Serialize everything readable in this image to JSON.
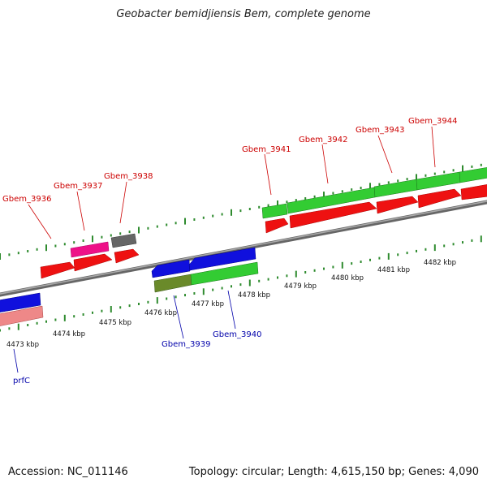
{
  "header": {
    "title": "Geobacter bemidjiensis Bem, complete genome"
  },
  "footer": {
    "accession": "Accession: NC_011146",
    "topology": "Topology: circular; Length: 4,615,150 bp; Genes: 4,090"
  },
  "colors": {
    "backbone": "#8a8a8a",
    "tick": "#2e8b2e",
    "red": "#ee1111",
    "blue": "#1010dd",
    "green": "#33cc33",
    "dark_green": "#2a8a2a",
    "magenta": "#ee1188",
    "gray": "#666666",
    "pink": "#ee8888",
    "olive": "#6a8a2a",
    "label_top": "#cc0000",
    "label_bottom": "#0000aa"
  },
  "kbp_ticks": [
    {
      "label": "4473 kbp"
    },
    {
      "label": "4474 kbp"
    },
    {
      "label": "4475 kbp"
    },
    {
      "label": "4476 kbp"
    },
    {
      "label": "4477 kbp"
    },
    {
      "label": "4478 kbp"
    },
    {
      "label": "4479 kbp"
    },
    {
      "label": "4480 kbp"
    },
    {
      "label": "4481 kbp"
    },
    {
      "label": "4482 kbp"
    }
  ],
  "gene_labels_top": [
    {
      "name": "Gbem_3936"
    },
    {
      "name": "Gbem_3937"
    },
    {
      "name": "Gbem_3938"
    },
    {
      "name": "Gbem_3941"
    },
    {
      "name": "Gbem_3942"
    },
    {
      "name": "Gbem_3943"
    },
    {
      "name": "Gbem_3944"
    }
  ],
  "gene_labels_bottom": [
    {
      "name": "Gbem_3939"
    },
    {
      "name": "Gbem_3940"
    },
    {
      "name": "prfC"
    }
  ]
}
